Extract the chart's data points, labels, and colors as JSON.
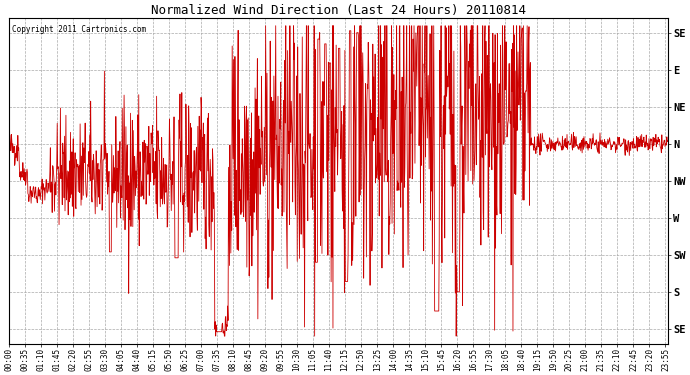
{
  "title": "Normalized Wind Direction (Last 24 Hours) 20110814",
  "copyright_text": "Copyright 2011 Cartronics.com",
  "line_color": "#cc0000",
  "background_color": "#ffffff",
  "grid_color": "#aaaaaa",
  "ytick_labels": [
    "SE",
    "S",
    "SW",
    "W",
    "NW",
    "N",
    "NE",
    "E",
    "SE"
  ],
  "ytick_values": [
    -1.0,
    -0.75,
    -0.5,
    -0.25,
    0.0,
    0.25,
    0.5,
    0.75,
    1.0
  ],
  "ylim": [
    -1.1,
    1.1
  ],
  "xtick_labels": [
    "00:00",
    "00:35",
    "01:10",
    "01:45",
    "02:20",
    "02:55",
    "03:30",
    "04:05",
    "04:40",
    "05:15",
    "05:50",
    "06:25",
    "07:00",
    "07:35",
    "08:10",
    "08:45",
    "09:20",
    "09:55",
    "10:30",
    "11:05",
    "11:40",
    "12:15",
    "12:50",
    "13:25",
    "14:00",
    "14:35",
    "15:10",
    "15:45",
    "16:20",
    "16:55",
    "17:30",
    "18:05",
    "18:40",
    "19:15",
    "19:50",
    "20:25",
    "21:00",
    "21:35",
    "22:10",
    "22:45",
    "23:20",
    "23:55"
  ],
  "seed": 42,
  "figwidth": 6.9,
  "figheight": 3.75,
  "dpi": 100
}
